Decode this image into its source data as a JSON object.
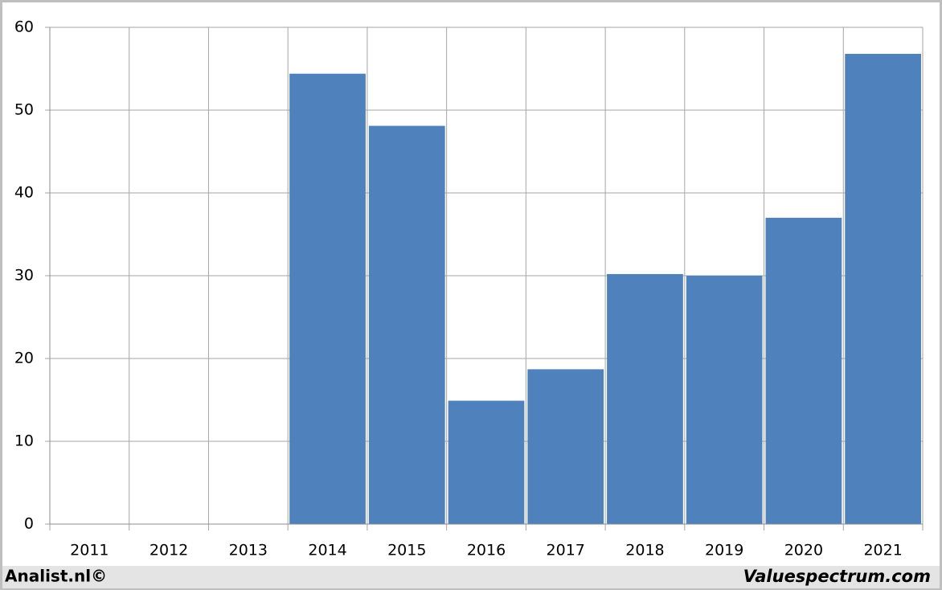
{
  "chart_data": {
    "type": "bar",
    "categories": [
      "2011",
      "2012",
      "2013",
      "2014",
      "2015",
      "2016",
      "2017",
      "2018",
      "2019",
      "2020",
      "2021"
    ],
    "values": [
      null,
      null,
      null,
      54.4,
      48.1,
      14.9,
      18.7,
      30.2,
      30.0,
      37.0,
      56.8
    ],
    "color": "#4f81bd",
    "ylim": [
      0,
      60
    ],
    "yticks": [
      0,
      10,
      20,
      30,
      40,
      50,
      60
    ],
    "grid": true
  },
  "footer": {
    "left": "Analist.nl©",
    "right": "Valuespectrum.com"
  }
}
